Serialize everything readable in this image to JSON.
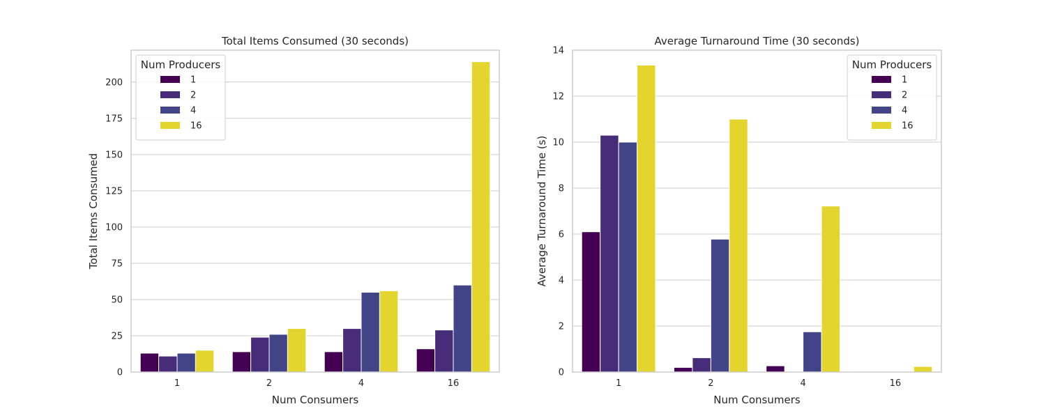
{
  "chart_data": [
    {
      "type": "bar",
      "title": "Total Items Consumed (30 seconds)",
      "xlabel": "Num Consumers",
      "ylabel": "Total Items Consumed",
      "categories": [
        "1",
        "2",
        "4",
        "16"
      ],
      "ylim": [
        0,
        222
      ],
      "yticks": [
        0,
        25,
        50,
        75,
        100,
        125,
        150,
        175,
        200
      ],
      "grid": true,
      "legend": {
        "title": "Num Producers",
        "placement": "top-left"
      },
      "series": [
        {
          "name": "1",
          "color": "#440154",
          "values": [
            13,
            14,
            14,
            16
          ]
        },
        {
          "name": "2",
          "color": "#472c7a",
          "values": [
            11,
            24,
            30,
            29
          ]
        },
        {
          "name": "4",
          "color": "#414487",
          "values": [
            13,
            26,
            55,
            60
          ]
        },
        {
          "name": "16",
          "color": "#e3d52e",
          "values": [
            15,
            30,
            56,
            214
          ]
        }
      ]
    },
    {
      "type": "bar",
      "title": "Average Turnaround Time (30 seconds)",
      "xlabel": "Num Consumers",
      "ylabel": "Average Turnaround Time (s)",
      "categories": [
        "1",
        "2",
        "4",
        "16"
      ],
      "ylim": [
        0,
        14
      ],
      "yticks": [
        0,
        2,
        4,
        6,
        8,
        10,
        12,
        14
      ],
      "grid": true,
      "legend": {
        "title": "Num Producers",
        "placement": "top-right"
      },
      "series": [
        {
          "name": "1",
          "color": "#440154",
          "values": [
            6.1,
            0.2,
            0.27,
            0
          ]
        },
        {
          "name": "2",
          "color": "#472c7a",
          "values": [
            10.3,
            0.62,
            0,
            0
          ]
        },
        {
          "name": "4",
          "color": "#414487",
          "values": [
            10.0,
            5.78,
            1.75,
            0
          ]
        },
        {
          "name": "16",
          "color": "#e3d52e",
          "values": [
            13.35,
            11.0,
            7.22,
            0.24
          ]
        }
      ]
    }
  ]
}
